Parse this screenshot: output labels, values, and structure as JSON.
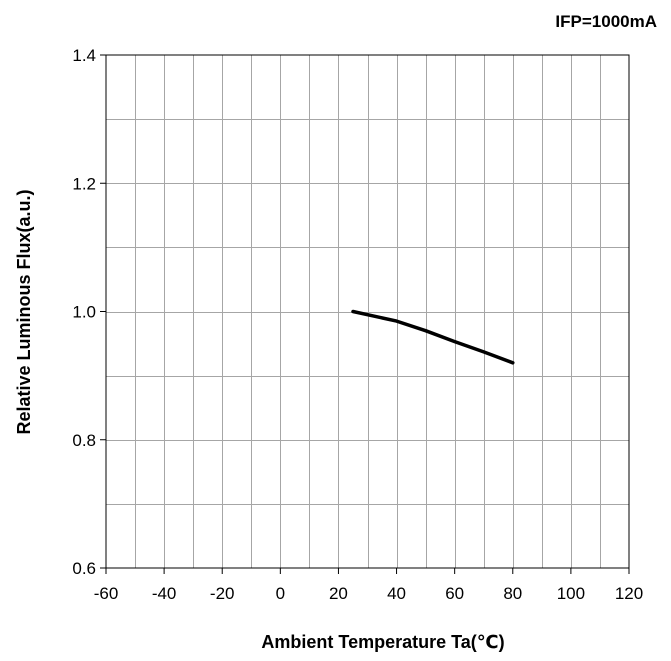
{
  "chart_data": {
    "type": "line",
    "title": "",
    "annotation": "IFP=1000mA",
    "xlabel": "Ambient Temperature Ta(℃)",
    "ylabel": "Relative Luminous Flux(a.u.)",
    "xlim": [
      -60,
      120
    ],
    "ylim": [
      0.6,
      1.4
    ],
    "x_ticks": [
      "-60",
      "-40",
      "-20",
      "0",
      "20",
      "40",
      "60",
      "80",
      "100",
      "120"
    ],
    "y_ticks": [
      "0.6",
      "0.8",
      "1.0",
      "1.2",
      "1.4"
    ],
    "x_minor_step": 10,
    "y_minor_step": 0.1,
    "grid": true,
    "legend": "none",
    "series": [
      {
        "color": "#000000",
        "x": [
          25,
          30,
          40,
          50,
          60,
          70,
          80
        ],
        "y": [
          1.0,
          0.995,
          0.985,
          0.97,
          0.953,
          0.937,
          0.92
        ]
      }
    ]
  }
}
